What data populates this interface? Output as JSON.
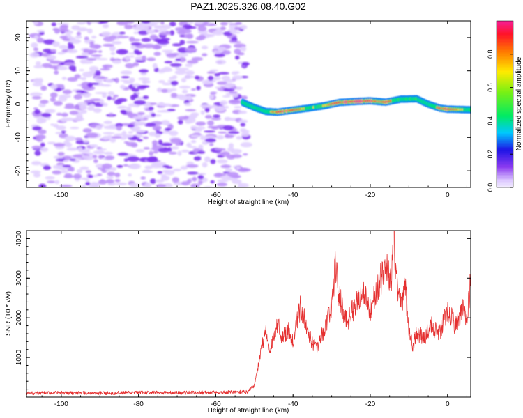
{
  "title": "PAZ1.2025.326.08.40.G02",
  "colors": {
    "snr_line": "#e53030",
    "background": "#ffffff",
    "axis": "#000000"
  },
  "chart_data": [
    {
      "type": "heatmap",
      "xlabel": "Height of straight line (km)",
      "ylabel": "Frequency (Hz)",
      "xlim": [
        -109,
        6
      ],
      "ylim": [
        -25,
        25
      ],
      "x_ticks": [
        -100,
        -80,
        -60,
        -40,
        -20,
        0
      ],
      "y_ticks": [
        -20,
        -10,
        0,
        10,
        20
      ],
      "noise_region_x": [
        -107,
        -52
      ],
      "noise_level": 0.12,
      "ridge": {
        "x": [
          -53,
          -50,
          -47,
          -44,
          -40,
          -36,
          -32,
          -28,
          -24,
          -20,
          -16,
          -12,
          -8,
          -5,
          -2,
          0,
          3,
          6
        ],
        "frequency": [
          0.5,
          -1,
          -2.2,
          -2.4,
          -1.8,
          -1.2,
          -0.5,
          0.5,
          0.8,
          1,
          0.6,
          1.5,
          1.6,
          0,
          -1.2,
          -1.5,
          -1.6,
          -1.7
        ],
        "amplitude": [
          0.25,
          0.35,
          0.5,
          0.9,
          0.85,
          0.6,
          0.75,
          0.9,
          1.0,
          0.85,
          0.95,
          0.55,
          0.6,
          0.45,
          0.85,
          0.9,
          0.7,
          0.55
        ]
      },
      "colorbar": {
        "label": "Normalized spectral amplitude",
        "range": [
          0,
          1
        ],
        "ticks": [
          "0.0",
          "0.2",
          "0.4",
          "0.6",
          "0.8"
        ]
      }
    },
    {
      "type": "line",
      "xlabel": "Height of straight line (km)",
      "ylabel": "SNR (10 * v/v)",
      "xlim": [
        -109,
        6
      ],
      "ylim": [
        0,
        4200
      ],
      "x_ticks": [
        -100,
        -80,
        -60,
        -40,
        -20,
        0
      ],
      "y_ticks": [
        1000,
        2000,
        3000,
        4000
      ],
      "series": [
        {
          "name": "SNR",
          "x": [
            -109,
            -100,
            -90,
            -80,
            -70,
            -60,
            -52,
            -50,
            -48,
            -47,
            -46,
            -45,
            -44,
            -43,
            -41,
            -40,
            -38,
            -36,
            -34,
            -32,
            -30,
            -29,
            -28,
            -26,
            -24,
            -22,
            -20,
            -18,
            -16,
            -14.5,
            -14,
            -13,
            -12,
            -11,
            -10,
            -9,
            -8,
            -6,
            -4,
            -2,
            0,
            2,
            4,
            5,
            6
          ],
          "y": [
            100,
            110,
            100,
            115,
            110,
            120,
            130,
            300,
            1300,
            1700,
            1100,
            1500,
            1900,
            1500,
            1700,
            1400,
            2300,
            1600,
            1200,
            1700,
            2300,
            3350,
            2500,
            1900,
            2300,
            2700,
            2200,
            2800,
            3300,
            2900,
            4150,
            2700,
            2400,
            2800,
            1700,
            1300,
            1600,
            1500,
            1800,
            1600,
            2200,
            1800,
            2300,
            1900,
            3000
          ]
        }
      ]
    }
  ]
}
